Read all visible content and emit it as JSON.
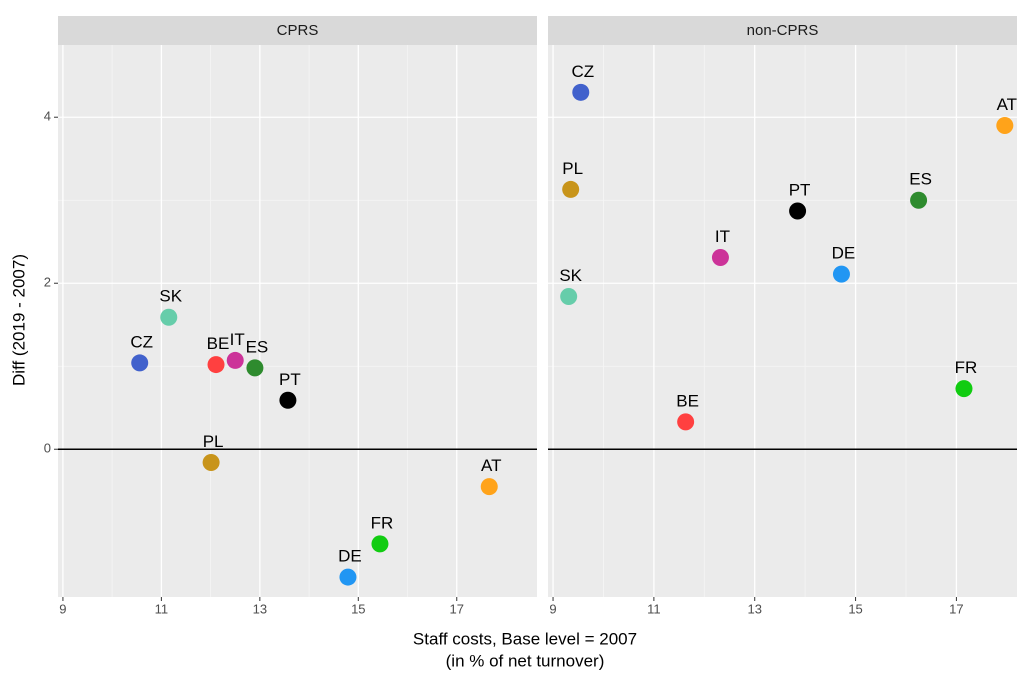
{
  "chart_data": {
    "type": "scatter",
    "xlabel": [
      "Staff costs, Base level = 2007",
      "(in % of net turnover)"
    ],
    "ylabel": "Diff (2019 - 2007)",
    "ylim": [
      -1.78,
      4.87
    ],
    "yticks": [
      0,
      2,
      4
    ],
    "hline": 0,
    "grid": true,
    "minor_grid": true,
    "facets": [
      {
        "title": "CPRS",
        "xlim": [
          8.9,
          18.63
        ],
        "xticks": [
          9,
          11,
          13,
          15,
          17
        ],
        "points": [
          {
            "label": "CZ",
            "x": 10.56,
            "y": 1.04,
            "color": "#4161cc"
          },
          {
            "label": "SK",
            "x": 11.15,
            "y": 1.59,
            "color": "#66cdaa"
          },
          {
            "label": "BE",
            "x": 12.11,
            "y": 1.02,
            "color": "#ff4040"
          },
          {
            "label": "IT",
            "x": 12.5,
            "y": 1.07,
            "color": "#cc3399"
          },
          {
            "label": "ES",
            "x": 12.9,
            "y": 0.98,
            "color": "#2e8b2e"
          },
          {
            "label": "PT",
            "x": 13.57,
            "y": 0.59,
            "color": "#000000"
          },
          {
            "label": "PL",
            "x": 12.01,
            "y": -0.16,
            "color": "#c8941a"
          },
          {
            "label": "AT",
            "x": 17.66,
            "y": -0.45,
            "color": "#ffa31a"
          },
          {
            "label": "FR",
            "x": 15.44,
            "y": -1.14,
            "color": "#11cc11"
          },
          {
            "label": "DE",
            "x": 14.79,
            "y": -1.54,
            "color": "#2196f3"
          }
        ]
      },
      {
        "title": "non-CPRS",
        "xlim": [
          8.9,
          18.4
        ],
        "xticks": [
          9,
          11,
          13,
          15,
          17
        ],
        "points": [
          {
            "label": "CZ",
            "x": 9.55,
            "y": 4.3,
            "color": "#4161cc"
          },
          {
            "label": "PL",
            "x": 9.35,
            "y": 3.13,
            "color": "#c8941a"
          },
          {
            "label": "SK",
            "x": 9.31,
            "y": 1.84,
            "color": "#66cdaa"
          },
          {
            "label": "IT",
            "x": 12.32,
            "y": 2.31,
            "color": "#cc3399"
          },
          {
            "label": "PT",
            "x": 13.85,
            "y": 2.87,
            "color": "#000000"
          },
          {
            "label": "DE",
            "x": 14.72,
            "y": 2.11,
            "color": "#2196f3"
          },
          {
            "label": "ES",
            "x": 16.25,
            "y": 3.0,
            "color": "#2e8b2e"
          },
          {
            "label": "AT",
            "x": 17.96,
            "y": 3.9,
            "color": "#ffa31a"
          },
          {
            "label": "FR",
            "x": 17.15,
            "y": 0.73,
            "color": "#11cc11"
          },
          {
            "label": "BE",
            "x": 11.63,
            "y": 0.33,
            "color": "#ff4040"
          }
        ]
      }
    ]
  }
}
